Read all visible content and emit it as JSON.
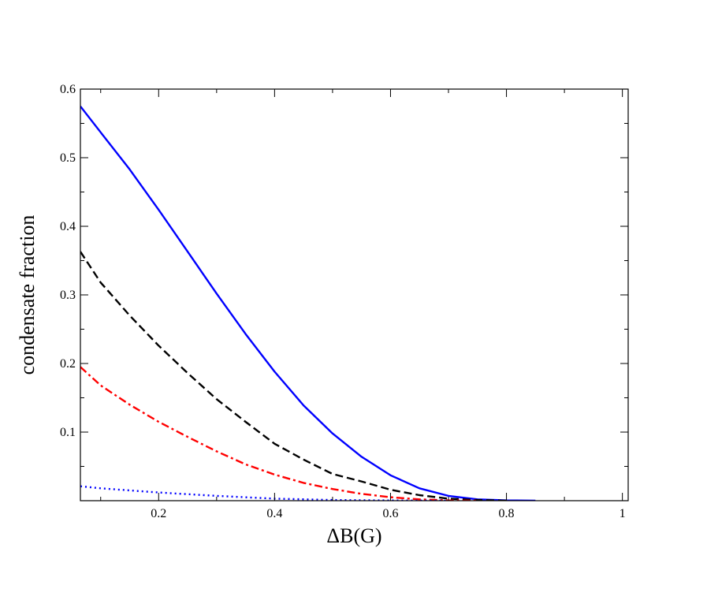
{
  "chart_data": {
    "type": "line",
    "title": "",
    "xlabel": "ΔB(G)",
    "ylabel": "condensate fraction",
    "xlim": [
      0.065,
      1.01
    ],
    "ylim": [
      0.0,
      0.6
    ],
    "x_ticks": [
      0.2,
      0.4,
      0.6,
      0.8,
      1.0
    ],
    "x_tick_labels": [
      "0.2",
      "0.4",
      "0.6",
      "0.8",
      "1"
    ],
    "y_ticks": [
      0.1,
      0.2,
      0.3,
      0.4,
      0.5,
      0.6
    ],
    "y_tick_labels": [
      "0.1",
      "0.2",
      "0.3",
      "0.4",
      "0.5",
      "0.6"
    ],
    "grid": false,
    "legend": "none",
    "series": [
      {
        "color": "#0000ff",
        "style": "solid",
        "x": [
          0.065,
          0.1,
          0.15,
          0.2,
          0.25,
          0.3,
          0.35,
          0.4,
          0.45,
          0.5,
          0.55,
          0.6,
          0.65,
          0.7,
          0.75,
          0.8,
          0.85
        ],
        "y": [
          0.575,
          0.537,
          0.483,
          0.424,
          0.363,
          0.302,
          0.243,
          0.188,
          0.139,
          0.098,
          0.064,
          0.037,
          0.018,
          0.007,
          0.002,
          0.0005,
          0.0
        ]
      },
      {
        "color": "#000000",
        "style": "dashed",
        "x": [
          0.065,
          0.1,
          0.15,
          0.2,
          0.25,
          0.3,
          0.35,
          0.4,
          0.45,
          0.5,
          0.55,
          0.6,
          0.65,
          0.7,
          0.75,
          0.8
        ],
        "y": [
          0.363,
          0.318,
          0.27,
          0.226,
          0.186,
          0.148,
          0.115,
          0.083,
          0.06,
          0.039,
          0.028,
          0.016,
          0.008,
          0.003,
          0.001,
          0.0
        ]
      },
      {
        "color": "#ff0000",
        "style": "dashdot",
        "x": [
          0.065,
          0.1,
          0.15,
          0.2,
          0.25,
          0.3,
          0.35,
          0.4,
          0.45,
          0.5,
          0.55,
          0.6,
          0.65,
          0.7,
          0.75
        ],
        "y": [
          0.195,
          0.168,
          0.14,
          0.115,
          0.093,
          0.072,
          0.053,
          0.038,
          0.026,
          0.017,
          0.01,
          0.005,
          0.002,
          0.0005,
          0.0
        ]
      },
      {
        "color": "#0000ff",
        "style": "dotted",
        "x": [
          0.065,
          0.1,
          0.2,
          0.3,
          0.4,
          0.5,
          0.6,
          0.7
        ],
        "y": [
          0.021,
          0.018,
          0.012,
          0.007,
          0.003,
          0.001,
          0.0003,
          0.0
        ]
      }
    ]
  }
}
